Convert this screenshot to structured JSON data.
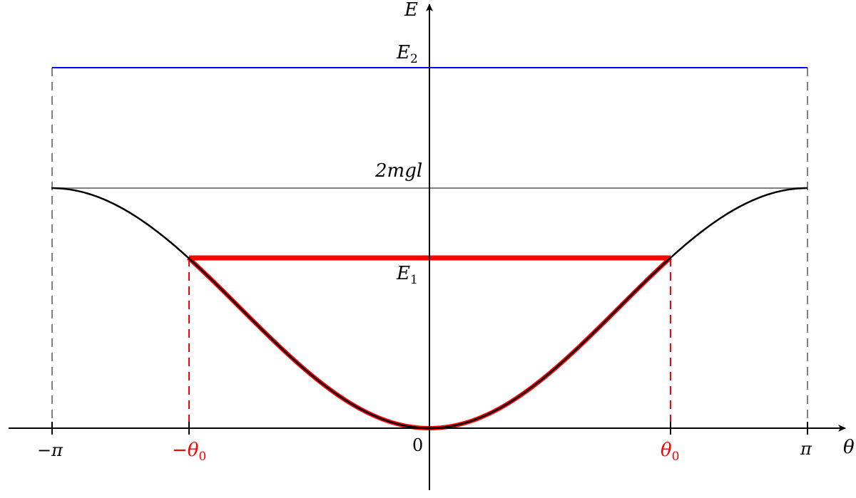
{
  "diagram": {
    "axes": {
      "x_label": "θ",
      "y_label": "E"
    },
    "ticks": {
      "neg_pi": "−π",
      "pi": "π",
      "zero": "0",
      "neg_theta0": "−θ",
      "neg_theta0_sub": "0",
      "theta0": "θ",
      "theta0_sub": "0"
    },
    "levels": {
      "E2": "E",
      "E2_sub": "2",
      "separatrix": "2mgl",
      "E1": "E",
      "E1_sub": "1"
    },
    "colors": {
      "axis": "#000000",
      "potential_curve": "#000000",
      "energy_E2": "#0000ff",
      "separatrix": "#808080",
      "energy_E1": "#ff0000",
      "guide_lines": "#808080",
      "theta0_guides": "#ff0000"
    }
  }
}
